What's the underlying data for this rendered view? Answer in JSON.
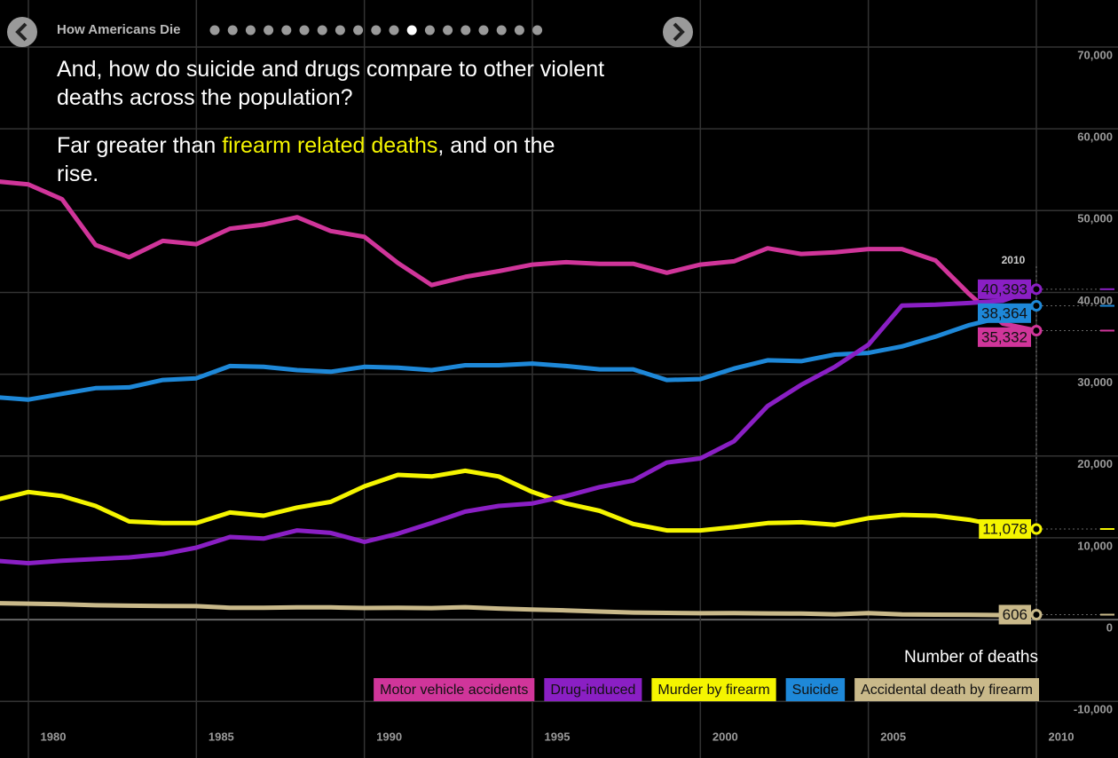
{
  "nav_title": "How Americans Die",
  "chart_data": {
    "type": "line",
    "title": "And, how do suicide and drugs compare to other violent deaths across the population?",
    "subtitle": [
      "Far greater than ",
      "firearm related deaths",
      ", and on the rise."
    ],
    "ylabel": "Number of deaths",
    "highlight_x": 2010,
    "x": [
      1979,
      1980,
      1981,
      1982,
      1983,
      1984,
      1985,
      1986,
      1987,
      1988,
      1989,
      1990,
      1991,
      1992,
      1993,
      1994,
      1995,
      1996,
      1997,
      1998,
      1999,
      2000,
      2001,
      2002,
      2003,
      2004,
      2005,
      2006,
      2007,
      2008,
      2009,
      2010
    ],
    "xlim": [
      1979.155,
      2012.43
    ],
    "xticks": [
      1980,
      1985,
      1990,
      1995,
      2000,
      2005,
      2010
    ],
    "ylim": [
      -16920,
      75750
    ],
    "yticks": [
      {
        "value": -10000,
        "label": "-10,000"
      },
      0,
      {
        "value": 10000,
        "label": "10,000"
      },
      {
        "value": 20000,
        "label": "20,000"
      },
      {
        "value": 30000,
        "label": "30,000"
      },
      {
        "value": 40000,
        "label": "40,000"
      },
      {
        "value": 50000,
        "label": "50,000"
      },
      {
        "value": 60000,
        "label": "60,000"
      },
      {
        "value": 70000,
        "label": "70,000"
      }
    ],
    "grid": true,
    "legend": "lower right",
    "series": [
      {
        "name": "Motor vehicle accidents",
        "color": "#d0359a",
        "values": [
          53600,
          53200,
          51400,
          45800,
          44300,
          46300,
          45900,
          47800,
          48300,
          49200,
          47500,
          46800,
          43600,
          40900,
          41900,
          42600,
          43400,
          43700,
          43500,
          43500,
          42400,
          43400,
          43800,
          45400,
          44700,
          44900,
          45300,
          45300,
          43900,
          39800,
          36200,
          35332
        ],
        "value_labels": [
          null,
          null,
          null,
          null,
          null,
          null,
          null,
          null,
          null,
          null,
          null,
          null,
          null,
          null,
          null,
          null,
          null,
          null,
          null,
          null,
          null,
          null,
          null,
          null,
          null,
          null,
          null,
          null,
          null,
          null,
          null,
          "35,332"
        ]
      },
      {
        "name": "Suicide",
        "color": "#1e88d8",
        "values": [
          27200,
          26900,
          27600,
          28300,
          28400,
          29300,
          29500,
          31000,
          30900,
          30500,
          30300,
          30900,
          30800,
          30500,
          31100,
          31100,
          31300,
          31000,
          30600,
          30600,
          29300,
          29400,
          30700,
          31700,
          31600,
          32400,
          32600,
          33400,
          34600,
          36000,
          37000,
          38364
        ],
        "value_labels": [
          null,
          null,
          null,
          null,
          null,
          null,
          null,
          null,
          null,
          null,
          null,
          null,
          null,
          null,
          null,
          null,
          null,
          null,
          null,
          null,
          null,
          null,
          null,
          null,
          null,
          null,
          null,
          null,
          null,
          null,
          null,
          "38,364"
        ]
      },
      {
        "name": "Murder by firearm",
        "color": "#f5f500",
        "values": [
          14600,
          15600,
          15100,
          13900,
          12000,
          11800,
          11800,
          13100,
          12700,
          13700,
          14400,
          16300,
          17700,
          17500,
          18200,
          17500,
          15600,
          14200,
          13300,
          11700,
          10900,
          10900,
          11300,
          11800,
          11900,
          11600,
          12400,
          12800,
          12700,
          12200,
          11400,
          11078
        ],
        "value_labels": [
          null,
          null,
          null,
          null,
          null,
          null,
          null,
          null,
          null,
          null,
          null,
          null,
          null,
          null,
          null,
          null,
          null,
          null,
          null,
          null,
          null,
          null,
          null,
          null,
          null,
          null,
          null,
          null,
          null,
          null,
          null,
          "11,078"
        ]
      },
      {
        "name": "Drug-induced",
        "color": "#8a1fc4",
        "values": [
          7200,
          6900,
          7200,
          7400,
          7600,
          8000,
          8800,
          10100,
          9900,
          10900,
          10600,
          9500,
          10500,
          11800,
          13200,
          13900,
          14200,
          15100,
          16200,
          17000,
          19200,
          19700,
          21800,
          26100,
          28700,
          30900,
          33600,
          38400,
          38500,
          38700,
          39000,
          40393
        ],
        "value_labels": [
          null,
          null,
          null,
          null,
          null,
          null,
          null,
          null,
          null,
          null,
          null,
          null,
          null,
          null,
          null,
          null,
          null,
          null,
          null,
          null,
          null,
          null,
          null,
          null,
          null,
          null,
          null,
          null,
          null,
          null,
          null,
          "40,393"
        ]
      },
      {
        "name": "Accidental death by firearm",
        "color": "#c9b98a",
        "values": [
          2000,
          1950,
          1870,
          1760,
          1700,
          1670,
          1650,
          1450,
          1440,
          1500,
          1490,
          1420,
          1440,
          1410,
          1520,
          1350,
          1220,
          1130,
          980,
          870,
          820,
          780,
          800,
          760,
          730,
          650,
          790,
          640,
          610,
          590,
          550,
          606
        ]
      }
    ]
  }
}
